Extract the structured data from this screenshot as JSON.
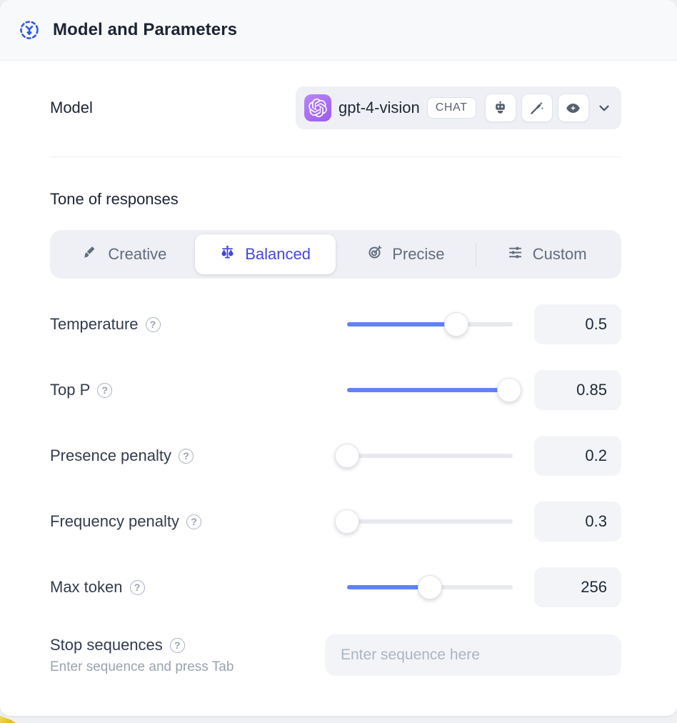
{
  "panel": {
    "title": "Model and Parameters",
    "icon": "model-hub-icon"
  },
  "model": {
    "label": "Model",
    "selected_model": "gpt-4-vision",
    "type_badge": "CHAT",
    "provider_icon": "openai-logo",
    "capability_icons": [
      "robot-icon",
      "magic-wand-icon",
      "vision-eye-icon"
    ],
    "dropdown_icon": "chevron-down-icon"
  },
  "tone": {
    "heading": "Tone of responses",
    "options": [
      {
        "label": "Creative",
        "icon": "paintbrush-icon",
        "selected": false
      },
      {
        "label": "Balanced",
        "icon": "balance-scale-icon",
        "selected": true
      },
      {
        "label": "Precise",
        "icon": "target-icon",
        "selected": false
      },
      {
        "label": "Custom",
        "icon": "sliders-icon",
        "selected": false
      }
    ]
  },
  "parameters": {
    "rows": [
      {
        "label": "Temperature",
        "value": "0.5",
        "fill_pct": 66
      },
      {
        "label": "Top P",
        "value": "0.85",
        "fill_pct": 98
      },
      {
        "label": "Presence penalty",
        "value": "0.2",
        "fill_pct": 0
      },
      {
        "label": "Frequency penalty",
        "value": "0.3",
        "fill_pct": 0
      },
      {
        "label": "Max token",
        "value": "256",
        "fill_pct": 50
      }
    ]
  },
  "stop_sequences": {
    "label": "Stop sequences",
    "hint": "Enter sequence and press Tab",
    "placeholder": "Enter sequence here",
    "value": ""
  },
  "ui": {
    "help_glyph": "?"
  },
  "colors": {
    "accent_indigo": "#4547d9",
    "slider_blue": "#5f82f6",
    "provider_purple": "#a163f2",
    "header_bg": "#f8f9fb",
    "control_bg": "#eef0f5",
    "value_box_bg": "#f2f4f7",
    "header_icon_blue": "#2f5ae8"
  }
}
